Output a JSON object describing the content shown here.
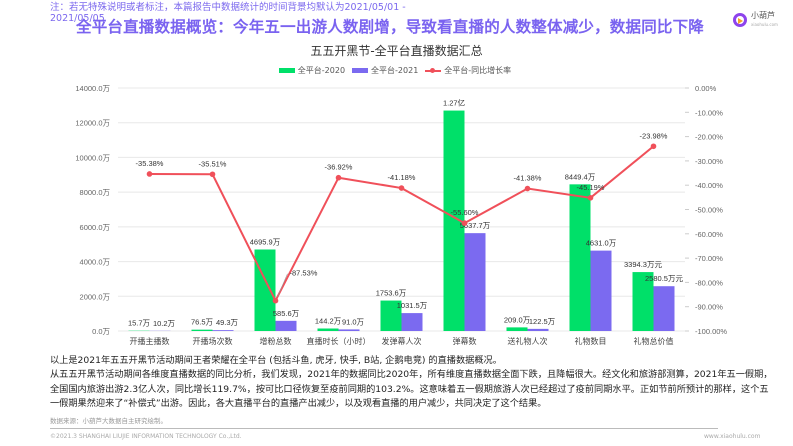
{
  "header": {
    "note": "注：若无特殊说明或者标注，本篇报告中数据统计的时间背景均默认为2021/05/01 - 2021/05/05",
    "title": "全平台直播数据概览：今年五一出游人数剧增，导致看直播的人数整体减少，数据同比下降",
    "logo_icon": "xiaohulu-logo-icon",
    "logo_text": "小葫芦",
    "logo_sub": "xiaohulu.com"
  },
  "colors": {
    "series_2020": "#00e069",
    "series_2021": "#7b6af0",
    "line": "#f0505a",
    "title": "#7a63f0",
    "grid": "#e8e8e8"
  },
  "chart_data": {
    "type": "bar",
    "title": "五五开黑节-全平台直播数据汇总",
    "categories": [
      "开播主播数",
      "开播场次数",
      "增粉总数",
      "直播时长（小时）",
      "发弹幕人次",
      "弹幕数",
      "送礼物人次",
      "礼物数目",
      "礼物总价值"
    ],
    "series": [
      {
        "name": "全平台-2020",
        "type": "bar",
        "axis": "left",
        "values": [
          15.7,
          76.5,
          4695.9,
          144.2,
          1753.6,
          12700,
          209.0,
          8449.4,
          3394.3
        ],
        "labels": [
          "15.7万",
          "76.5万",
          "4695.9万",
          "144.2万",
          "1753.6万",
          "1.27亿",
          "209.0万",
          "8449.4万",
          "3394.3万元"
        ]
      },
      {
        "name": "全平台-2021",
        "type": "bar",
        "axis": "left",
        "values": [
          10.2,
          49.3,
          585.6,
          91.0,
          1031.5,
          5637.7,
          122.5,
          4631.0,
          2580.5
        ],
        "labels": [
          "10.2万",
          "49.3万",
          "585.6万",
          "91.0万",
          "1031.5万",
          "5637.7万",
          "122.5万",
          "4631.0万",
          "2580.5万元"
        ]
      },
      {
        "name": "全平台-同比增长率",
        "type": "line",
        "axis": "right",
        "values": [
          -35.38,
          -35.51,
          -87.53,
          -36.92,
          -41.18,
          -55.6,
          -41.38,
          -45.19,
          -23.98
        ],
        "labels": [
          "-35.38%",
          "-35.51%",
          "-87.53%",
          "-36.92%",
          "-41.18%",
          "-55.60%",
          "-41.38%",
          "-45.19%",
          "-23.98%"
        ]
      }
    ],
    "left_axis": {
      "ylim": [
        0,
        14000
      ],
      "ticks": [
        "0.0万",
        "2000.0万",
        "4000.0万",
        "6000.0万",
        "8000.0万",
        "10000.0万",
        "12000.0万",
        "14000.0万"
      ]
    },
    "right_axis": {
      "ylim": [
        -100,
        0
      ],
      "ticks": [
        "0.00%",
        "-10.00%",
        "-20.00%",
        "-30.00%",
        "-40.00%",
        "-50.00%",
        "-60.00%",
        "-70.00%",
        "-80.00%",
        "-90.00%",
        "-100.00%"
      ]
    },
    "legend_position": "top",
    "grid": true
  },
  "body": {
    "paragraphs": [
      "以上是2021年五五开黑节活动期间王者荣耀在全平台 (包括斗鱼, 虎牙, 快手, B站, 企鹅电竞) 的直播数据概况。",
      "从五五开黑节活动期间各维度直播数据的同比分析，我们发现，2021年的数据同比2020年，所有维度直播数据全面下跌，且降幅很大。经文化和旅游部测算，2021年五一假期，",
      "全国国内旅游出游2.3亿人次，同比增长119.7%，按可比口径恢复至疫前同期的103.2%。这意味着五一假期旅游人次已经超过了疫前同期水平。正如节前所预计的那样，这个五",
      "一假期果然迎来了“补偿式”出游。因此，各大直播平台的直播产出减少，以及观看直播的用户减少，共同决定了这个结果。"
    ],
    "source": "数据来源：小葫芦大数据自主研究绘制。"
  },
  "footer": {
    "copyright": "©2021.3 SHANGHAI LIUJIE INFORMATION TECHNOLOGY Co.,Ltd.",
    "website": "www.xiaohulu.com"
  }
}
